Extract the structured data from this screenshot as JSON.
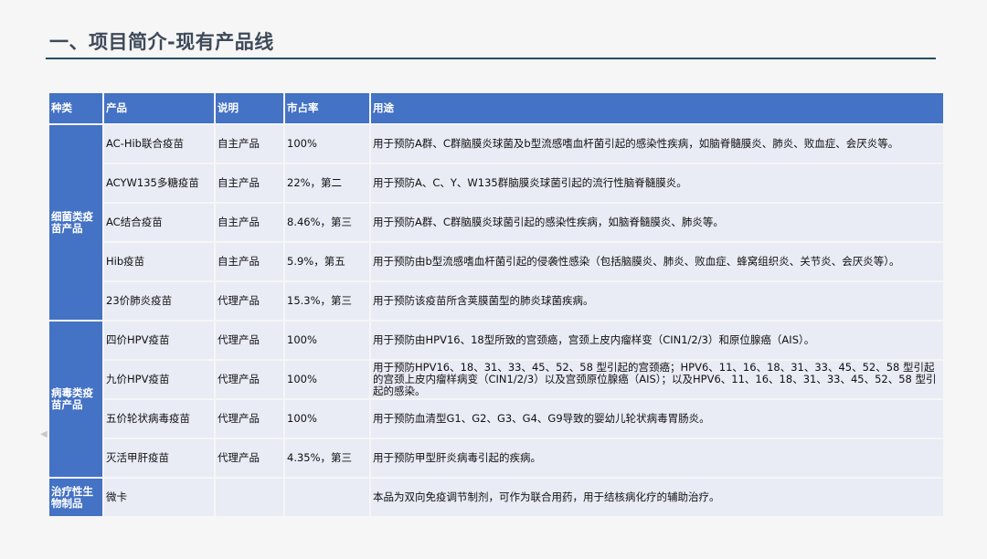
{
  "title": "一、项目简介-现有产品线",
  "headers": [
    "种类",
    "产品",
    "说明",
    "市占率",
    "用途"
  ],
  "groups": [
    {
      "category": "细菌类疫苗产品",
      "rows": [
        {
          "product": "AC-Hib联合疫苗",
          "desc": "自主产品",
          "share": "100%",
          "use": "用于预防A群、C群脑膜炎球菌及b型流感嗜血杆菌引起的感染性疾病，如脑脊髓膜炎、肺炎、败血症、会厌炎等。"
        },
        {
          "product": "ACYW135多糖疫苗",
          "desc": "自主产品",
          "share": "22%，第二",
          "use": "用于预防A、C、Y、W135群脑膜炎球菌引起的流行性脑脊髓膜炎。"
        },
        {
          "product": "AC结合疫苗",
          "desc": "自主产品",
          "share": "8.46%，第三",
          "use": "用于预防A群、C群脑膜炎球菌引起的感染性疾病，如脑脊髓膜炎、肺炎等。"
        },
        {
          "product": "Hib疫苗",
          "desc": "自主产品",
          "share": "5.9%，第五",
          "use": "用于预防由b型流感嗜血杆菌引起的侵袭性感染（包括脑膜炎、肺炎、败血症、蜂窝组织炎、关节炎、会厌炎等）。"
        },
        {
          "product": "23价肺炎疫苗",
          "desc": "代理产品",
          "share": "15.3%，第三",
          "use": "用于预防该疫苗所含荚膜菌型的肺炎球菌疾病。"
        }
      ]
    },
    {
      "category": "病毒类疫苗产品",
      "rows": [
        {
          "product": "四价HPV疫苗",
          "desc": "代理产品",
          "share": "100%",
          "use": "用于预防由HPV16、18型所致的宫颈癌，宫颈上皮内瘤样变（CIN1/2/3）和原位腺癌（AIS）。"
        },
        {
          "product": "九价HPV疫苗",
          "desc": "代理产品",
          "share": "100%",
          "use": "用于预防HPV16、18、31、33、45、52、58 型引起的宫颈癌；HPV6、11、16、18、31、33、45、52、58 型引起的宫颈上皮内瘤样病变（CIN1/2/3）以及宫颈原位腺癌（AIS）；以及HPV6、11、16、18、31、33、45、52、58 型引起的感染。"
        },
        {
          "product": "五价轮状病毒疫苗",
          "desc": "代理产品",
          "share": "100%",
          "use": "用于预防血清型G1、G2、G3、G4、G9导致的婴幼儿轮状病毒胃肠炎。"
        },
        {
          "product": "灭活甲肝疫苗",
          "desc": "代理产品",
          "share": "4.35%，第三",
          "use": "用于预防甲型肝炎病毒引起的疾病。"
        }
      ]
    },
    {
      "category": "治疗性生物制品",
      "rows": [
        {
          "product": "微卡",
          "desc": "",
          "share": "",
          "use": "本品为双向免疫调节制剂，可作为联合用药，用于结核病化疗的辅助治疗。"
        }
      ]
    }
  ]
}
